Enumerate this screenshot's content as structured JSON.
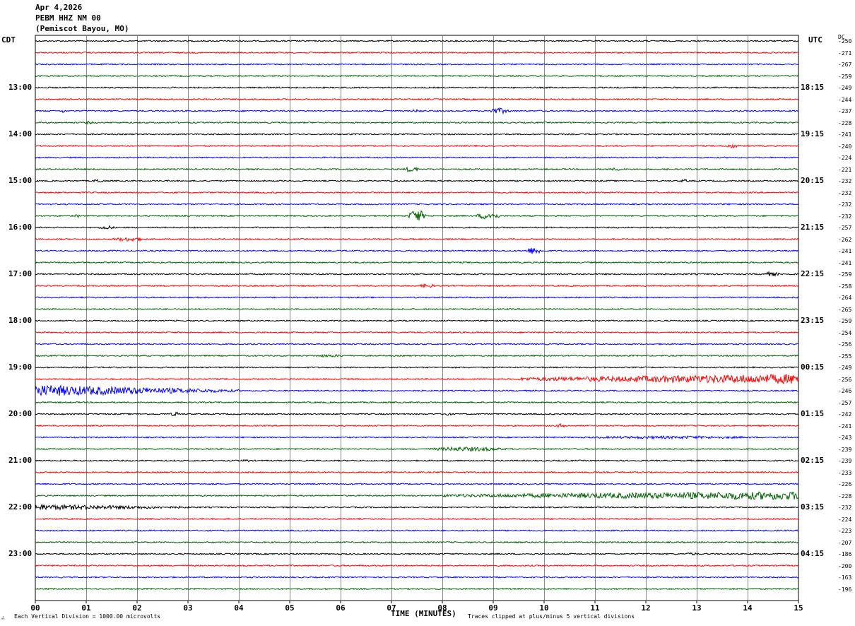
{
  "header": {
    "date": "Apr 4,2026",
    "station": "PEBM HHZ NM 00",
    "location": "(Pemiscot Bayou, MO)"
  },
  "left_zone": "CDT",
  "right_zone": "UTC",
  "dc_label": "DC",
  "footer": {
    "scale_note": "Each Vertical Division = 1000.00 microvolts",
    "clip_note": "Traces clipped at plus/minus 5 vertical divisions",
    "corner_mark": "∴"
  },
  "colors": {
    "black": "#000000",
    "red": "#ff0000",
    "blue": "#0000ff",
    "green": "#006400"
  },
  "chart_data": {
    "type": "line",
    "title": "PEBM HHZ NM 00 (Pemiscot Bayou, MO)",
    "xlabel": "TIME (MINUTES)",
    "xlim": [
      0,
      15
    ],
    "x_ticks": [
      "00",
      "01",
      "02",
      "03",
      "04",
      "05",
      "06",
      "07",
      "08",
      "09",
      "10",
      "11",
      "12",
      "13",
      "14",
      "15"
    ],
    "left_hour_labels": [
      "13:00",
      "14:00",
      "15:00",
      "16:00",
      "17:00",
      "18:00",
      "19:00",
      "20:00",
      "21:00",
      "22:00",
      "23:00"
    ],
    "right_hour_labels": [
      "18:15",
      "19:15",
      "20:15",
      "21:15",
      "22:15",
      "23:15",
      "00:15",
      "01:15",
      "02:15",
      "03:15",
      "04:15"
    ],
    "trace_colors": [
      "black",
      "red",
      "blue",
      "green"
    ],
    "dc_offsets": [
      -250,
      -271,
      -267,
      -259,
      -249,
      -244,
      -237,
      -228,
      -241,
      -240,
      -224,
      -221,
      -232,
      -232,
      -232,
      -232,
      -257,
      -262,
      -241,
      -241,
      -259,
      -258,
      -264,
      -265,
      -259,
      -254,
      -256,
      -255,
      -249,
      -256,
      -246,
      -257,
      -242,
      -241,
      -243,
      -239,
      -239,
      -233,
      -226,
      -228,
      -232,
      -224,
      -223,
      -207,
      -186,
      -200,
      -163,
      -196
    ],
    "events": [
      {
        "row": 6,
        "x": 0.5,
        "width": 0.1,
        "amp": 3
      },
      {
        "row": 6,
        "x": 6.8,
        "width": 0.15,
        "amp": 3
      },
      {
        "row": 6,
        "x": 7.3,
        "width": 0.4,
        "amp": 2
      },
      {
        "row": 6,
        "x": 8.8,
        "width": 0.6,
        "amp": 4
      },
      {
        "row": 7,
        "x": 0.9,
        "width": 0.3,
        "amp": 2
      },
      {
        "row": 9,
        "x": 13.5,
        "width": 0.4,
        "amp": 3
      },
      {
        "row": 11,
        "x": 7.2,
        "width": 0.4,
        "amp": 4
      },
      {
        "row": 11,
        "x": 11.2,
        "width": 0.5,
        "amp": 2
      },
      {
        "row": 12,
        "x": 1.1,
        "width": 0.3,
        "amp": 3
      },
      {
        "row": 12,
        "x": 12.6,
        "width": 0.3,
        "amp": 2
      },
      {
        "row": 15,
        "x": 7.3,
        "width": 0.4,
        "amp": 9
      },
      {
        "row": 15,
        "x": 8.6,
        "width": 0.6,
        "amp": 5
      },
      {
        "row": 15,
        "x": 0.7,
        "width": 0.3,
        "amp": 2
      },
      {
        "row": 16,
        "x": 1.2,
        "width": 0.4,
        "amp": 3
      },
      {
        "row": 17,
        "x": 1.4,
        "width": 0.9,
        "amp": 3
      },
      {
        "row": 18,
        "x": 9.6,
        "width": 0.4,
        "amp": 5
      },
      {
        "row": 20,
        "x": 14.2,
        "width": 0.5,
        "amp": 3
      },
      {
        "row": 21,
        "x": 7.5,
        "width": 0.4,
        "amp": 3
      },
      {
        "row": 27,
        "x": 5.3,
        "width": 1.0,
        "amp": 2
      },
      {
        "row": 29,
        "x": 9.5,
        "width": 5.5,
        "amp": 7,
        "growth": true
      },
      {
        "row": 30,
        "x": 0.0,
        "width": 4.0,
        "amp": 8,
        "decay": true
      },
      {
        "row": 32,
        "x": 2.6,
        "width": 0.3,
        "amp": 3
      },
      {
        "row": 32,
        "x": 8.0,
        "width": 0.2,
        "amp": 3
      },
      {
        "row": 33,
        "x": 10.2,
        "width": 0.3,
        "amp": 3
      },
      {
        "row": 34,
        "x": 10.0,
        "width": 5.0,
        "amp": 2
      },
      {
        "row": 35,
        "x": 7.5,
        "width": 2.0,
        "amp": 3
      },
      {
        "row": 36,
        "x": 4.0,
        "width": 0.3,
        "amp": 2
      },
      {
        "row": 39,
        "x": 8.0,
        "width": 7.0,
        "amp": 6,
        "growth": true
      },
      {
        "row": 40,
        "x": 0.0,
        "width": 3.5,
        "amp": 4,
        "decay": true
      },
      {
        "row": 44,
        "x": 12.7,
        "width": 0.4,
        "amp": 2
      }
    ]
  }
}
